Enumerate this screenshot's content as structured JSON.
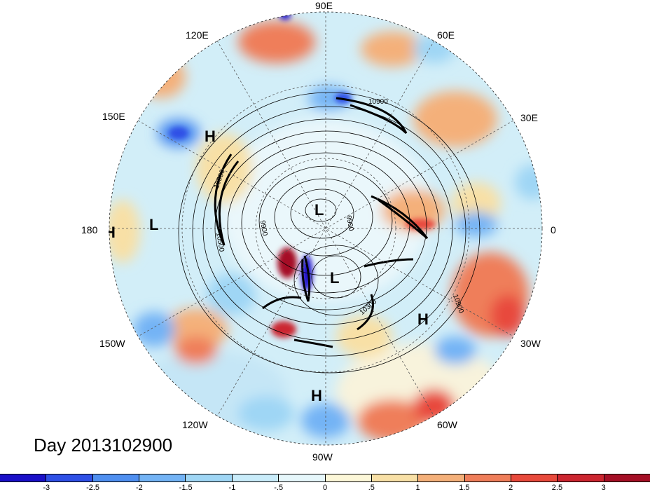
{
  "title": "Day 2013102900",
  "longitude_labels": {
    "e90": "90E",
    "e60": "60E",
    "e30": "30E",
    "zero": "0",
    "w30": "30W",
    "w60": "60W",
    "w90": "90W",
    "w120": "120W",
    "w150": "150W",
    "dateline": "180",
    "e150": "150E",
    "e120": "120E"
  },
  "pressure_centers": {
    "h1": "H",
    "h2": "H",
    "h3": "H",
    "h4": "H",
    "l1": "L",
    "l2": "L",
    "l3": "L"
  },
  "contour_labels": {
    "c1": "10900",
    "c2": "10900",
    "c3": "10300",
    "c4": "10500",
    "c5": "9900",
    "c6": "9900",
    "c7": "10900"
  },
  "colorbar": {
    "colors": [
      "#1a10c8",
      "#2f50e6",
      "#4f8ff0",
      "#73b3f5",
      "#9fd6f5",
      "#c9ecfa",
      "#e6f7fb",
      "#fcf7d8",
      "#f8e0a6",
      "#f4b07a",
      "#ef7e5a",
      "#e84a3c",
      "#cc2630",
      "#a50f26"
    ],
    "ticks": [
      "-3",
      "-2.5",
      "-2",
      "-1.5",
      "-1",
      "-.5",
      "0",
      ".5",
      "1",
      "1.5",
      "2",
      "2.5",
      "3"
    ]
  },
  "colors": {
    "blue_anomaly": "#4f8ff0",
    "red_anomaly": "#e84a3c",
    "neutral": "#e6f7fb"
  }
}
